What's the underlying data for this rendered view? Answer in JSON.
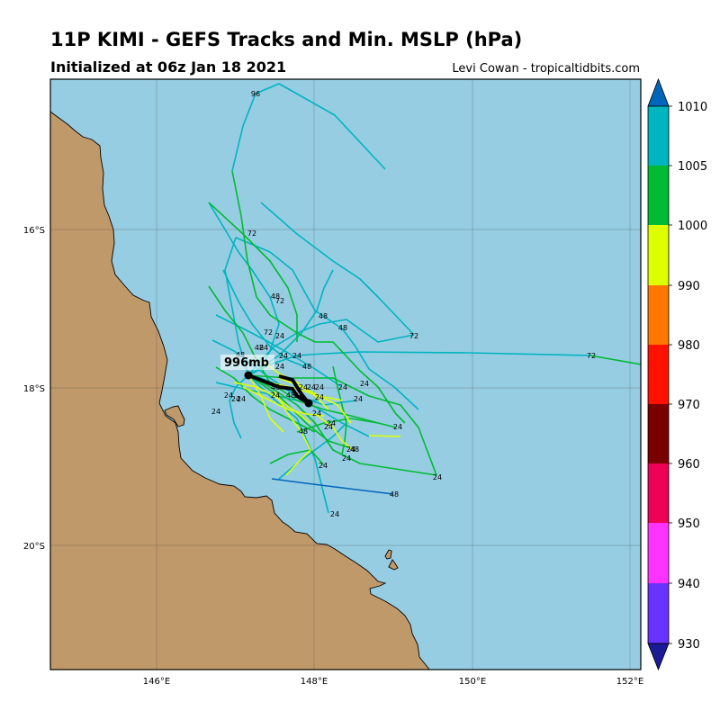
{
  "header": {
    "title": "11P KIMI - GEFS Tracks and Min. MSLP (hPa)",
    "subtitle": "Initialized at 06z Jan 18 2021",
    "credit": "Levi Cowan - tropicaltidbits.com"
  },
  "map": {
    "lon_range": [
      144.65,
      152.1
    ],
    "lat_range": [
      -21.55,
      -14.1
    ],
    "lon_ticks": [
      "146°E",
      "148°E",
      "150°E",
      "152°E"
    ],
    "lat_ticks": [
      "16°S",
      "18°S",
      "20°S"
    ],
    "ocean_color": "#96cde2",
    "land_color": "#c0996b",
    "min_pressure_label": "996mb"
  },
  "colorbar": {
    "ticks": [
      "930",
      "940",
      "950",
      "960",
      "970",
      "980",
      "990",
      "1000",
      "1005",
      "1010"
    ],
    "colors": [
      "#1a1a96",
      "#6633ff",
      "#ff33ff",
      "#ee0055",
      "#7a0000",
      "#ff1100",
      "#ff7700",
      "#ddff00",
      "#00bb33",
      "#00b4c0",
      "#0066bb"
    ]
  },
  "track_hour_labels": [
    "24",
    "48",
    "72",
    "96"
  ]
}
